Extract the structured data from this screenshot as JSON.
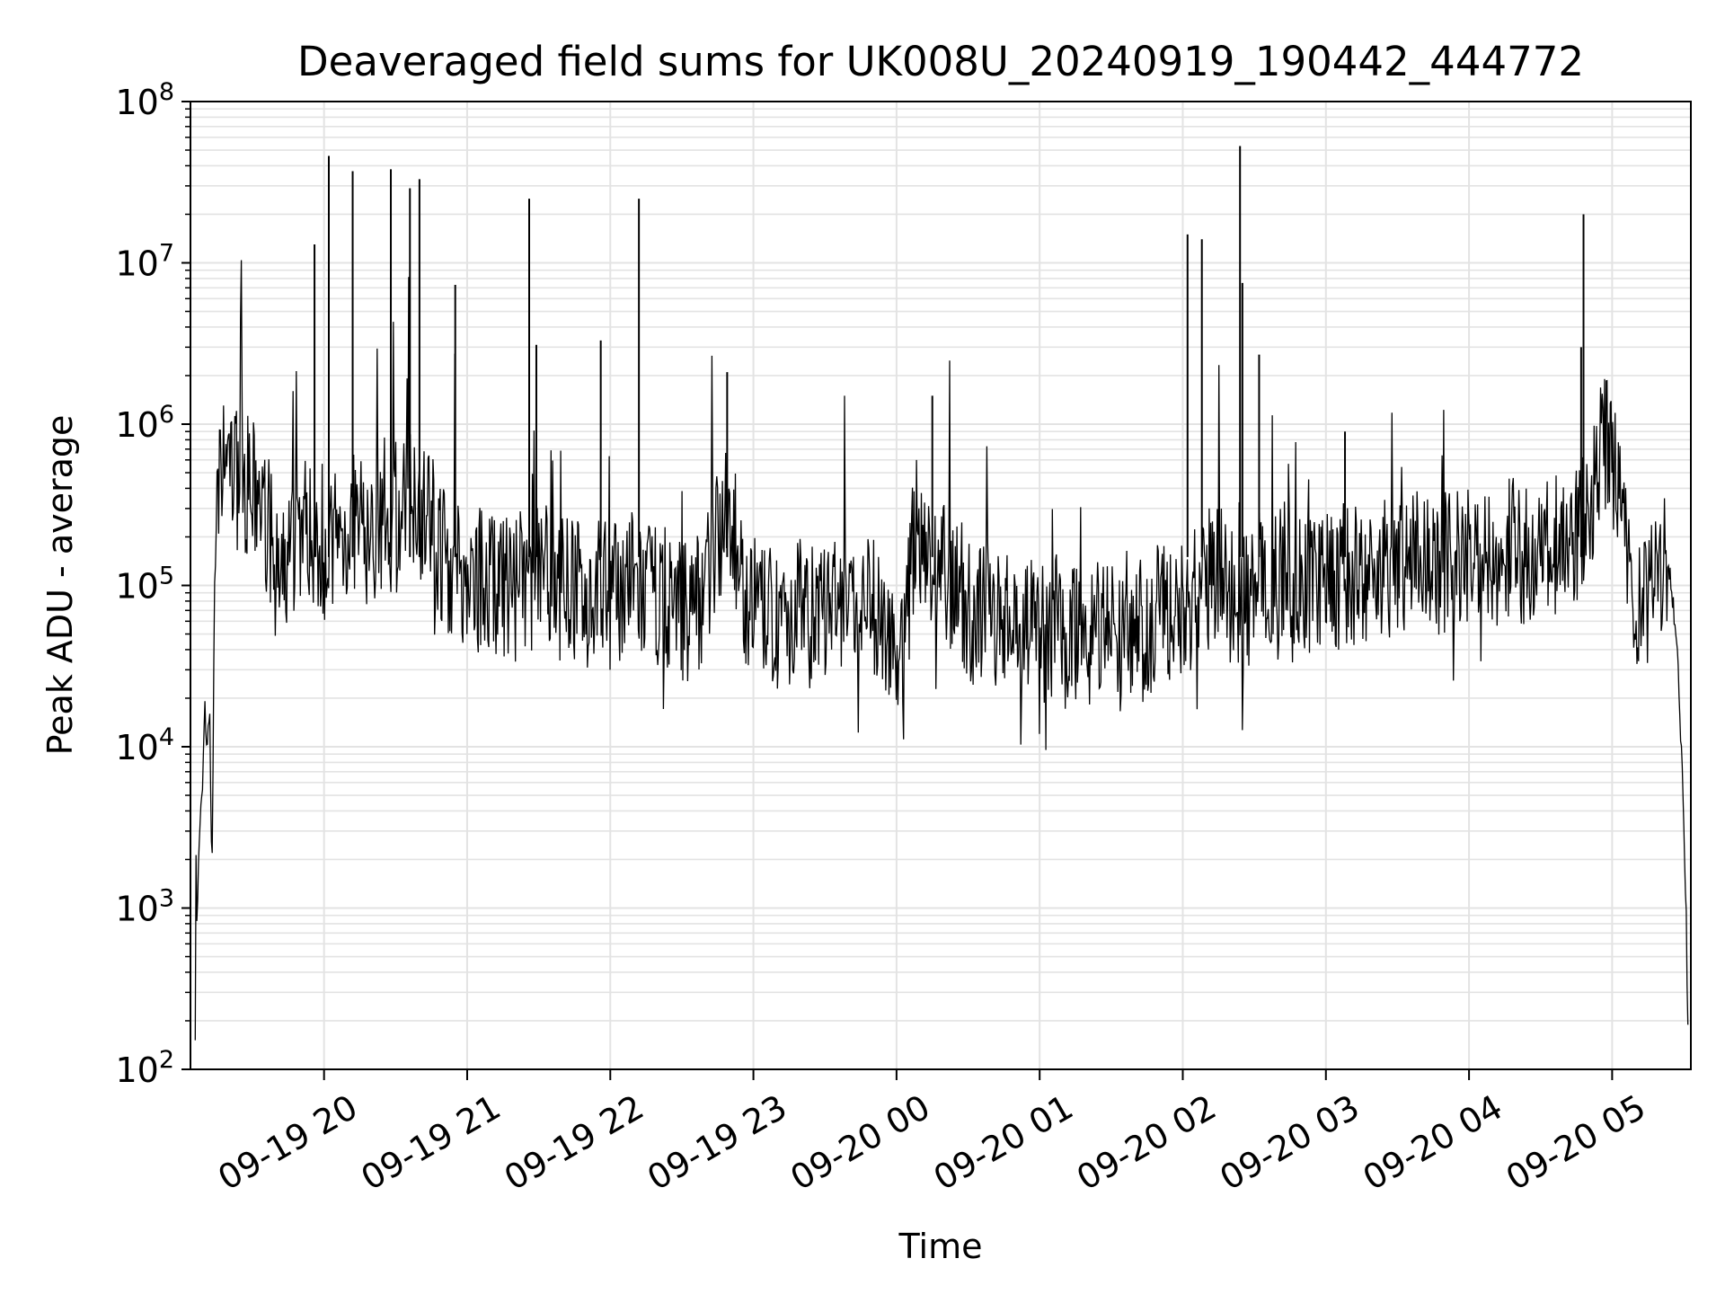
{
  "chart_data": {
    "type": "line",
    "title": "Deaveraged field sums for UK008U_20240919_190442_444772",
    "xlabel": "Time",
    "ylabel": "Peak ADU - average",
    "yscale": "log",
    "ylim": [
      100,
      100000000
    ],
    "xlim": [
      "2024-09-19 19:04",
      "2024-09-20 05:33"
    ],
    "grid": true,
    "line_color": "#000000",
    "x_ticks": [
      {
        "time": "2024-09-19 20:00",
        "label": "09-19 20"
      },
      {
        "time": "2024-09-19 21:00",
        "label": "09-19 21"
      },
      {
        "time": "2024-09-19 22:00",
        "label": "09-19 22"
      },
      {
        "time": "2024-09-19 23:00",
        "label": "09-19 23"
      },
      {
        "time": "2024-09-20 00:00",
        "label": "09-20 00"
      },
      {
        "time": "2024-09-20 01:00",
        "label": "09-20 01"
      },
      {
        "time": "2024-09-20 02:00",
        "label": "09-20 02"
      },
      {
        "time": "2024-09-20 03:00",
        "label": "09-20 03"
      },
      {
        "time": "2024-09-20 04:00",
        "label": "09-20 04"
      },
      {
        "time": "2024-09-20 05:00",
        "label": "09-20 05"
      }
    ],
    "y_ticks": [
      {
        "value": 100,
        "mantissa": "10",
        "exp": "2"
      },
      {
        "value": 1000,
        "mantissa": "10",
        "exp": "3"
      },
      {
        "value": 10000,
        "mantissa": "10",
        "exp": "4"
      },
      {
        "value": 100000,
        "mantissa": "10",
        "exp": "5"
      },
      {
        "value": 1000000,
        "mantissa": "10",
        "exp": "6"
      },
      {
        "value": 10000000,
        "mantissa": "10",
        "exp": "7"
      },
      {
        "value": 100000000,
        "mantissa": "10",
        "exp": "8"
      }
    ],
    "series": [
      {
        "x": [
          "2024-09-19 19:06",
          "2024-09-19 19:06",
          "2024-09-19 19:07",
          "2024-09-19 19:07",
          "2024-09-19 19:08",
          "2024-09-19 19:09",
          "2024-09-19 19:10",
          "2024-09-19 19:11",
          "2024-09-19 19:12",
          "2024-09-19 19:13",
          "2024-09-19 19:14",
          "2024-09-19 19:15",
          "2024-09-19 19:16",
          "2024-09-19 19:17",
          "2024-09-19 19:19",
          "2024-09-19 19:21",
          "2024-09-19 19:23",
          "2024-09-19 19:25",
          "2024-09-19 19:27",
          "2024-09-19 19:30",
          "2024-09-19 19:33",
          "2024-09-19 19:36",
          "2024-09-19 19:38",
          "2024-09-19 19:40",
          "2024-09-19 19:42",
          "2024-09-19 19:45",
          "2024-09-19 19:48",
          "2024-09-19 19:50",
          "2024-09-19 19:52",
          "2024-09-19 19:55",
          "2024-09-19 19:58",
          "2024-09-19 20:02",
          "2024-09-19 20:05",
          "2024-09-19 20:09",
          "2024-09-19 20:13",
          "2024-09-19 20:17",
          "2024-09-19 20:21",
          "2024-09-19 20:25",
          "2024-09-19 20:28",
          "2024-09-19 20:31",
          "2024-09-19 20:35",
          "2024-09-19 20:39",
          "2024-09-19 20:41",
          "2024-09-19 20:45",
          "2024-09-19 20:50",
          "2024-09-19 20:56",
          "2024-09-19 21:02",
          "2024-09-19 21:08",
          "2024-09-19 21:14",
          "2024-09-19 21:20",
          "2024-09-19 21:26",
          "2024-09-19 21:32",
          "2024-09-19 21:38",
          "2024-09-19 21:44",
          "2024-09-19 21:50",
          "2024-09-19 21:56",
          "2024-09-19 22:02",
          "2024-09-19 22:08",
          "2024-09-19 22:14",
          "2024-09-19 22:20",
          "2024-09-19 22:26",
          "2024-09-19 22:32",
          "2024-09-19 22:38",
          "2024-09-19 22:44",
          "2024-09-19 22:50",
          "2024-09-19 22:56",
          "2024-09-19 23:02",
          "2024-09-19 23:08",
          "2024-09-19 23:14",
          "2024-09-19 23:20",
          "2024-09-19 23:26",
          "2024-09-19 23:32",
          "2024-09-19 23:38",
          "2024-09-19 23:44",
          "2024-09-19 23:50",
          "2024-09-19 23:56",
          "2024-09-20 00:02",
          "2024-09-20 00:08",
          "2024-09-20 00:14",
          "2024-09-20 00:20",
          "2024-09-20 00:26",
          "2024-09-20 00:32",
          "2024-09-20 00:38",
          "2024-09-20 00:44",
          "2024-09-20 00:50",
          "2024-09-20 00:56",
          "2024-09-20 01:02",
          "2024-09-20 01:08",
          "2024-09-20 01:14",
          "2024-09-20 01:20",
          "2024-09-20 01:26",
          "2024-09-20 01:32",
          "2024-09-20 01:38",
          "2024-09-20 01:44",
          "2024-09-20 01:50",
          "2024-09-20 01:56",
          "2024-09-20 02:02",
          "2024-09-20 02:08",
          "2024-09-20 02:14",
          "2024-09-20 02:20",
          "2024-09-20 02:26",
          "2024-09-20 02:32",
          "2024-09-20 02:38",
          "2024-09-20 02:44",
          "2024-09-20 02:50",
          "2024-09-20 02:56",
          "2024-09-20 03:02",
          "2024-09-20 03:08",
          "2024-09-20 03:14",
          "2024-09-20 03:20",
          "2024-09-20 03:26",
          "2024-09-20 03:32",
          "2024-09-20 03:38",
          "2024-09-20 03:44",
          "2024-09-20 03:50",
          "2024-09-20 03:56",
          "2024-09-20 04:02",
          "2024-09-20 04:08",
          "2024-09-20 04:14",
          "2024-09-20 04:20",
          "2024-09-20 04:26",
          "2024-09-20 04:32",
          "2024-09-20 04:38",
          "2024-09-20 04:44",
          "2024-09-20 04:48",
          "2024-09-20 04:52",
          "2024-09-20 04:56",
          "2024-09-20 05:00",
          "2024-09-20 05:04",
          "2024-09-20 05:08",
          "2024-09-20 05:12",
          "2024-09-20 05:16",
          "2024-09-20 05:20",
          "2024-09-20 05:24",
          "2024-09-20 05:27",
          "2024-09-20 05:29",
          "2024-09-20 05:31",
          "2024-09-20 05:32"
        ],
        "y": [
          180,
          3800,
          450,
          1200,
          3500,
          5000,
          18000,
          9000,
          20000,
          1200,
          80000,
          200000,
          350000,
          500000,
          600000,
          550000,
          450000,
          500000,
          420000,
          380000,
          300000,
          250000,
          180000,
          120000,
          90000,
          150000,
          200000,
          220000,
          250000,
          200000,
          180000,
          160000,
          150000,
          220000,
          250000,
          200000,
          180000,
          300000,
          250000,
          220000,
          350000,
          400000,
          280000,
          250000,
          150000,
          120000,
          100000,
          120000,
          90000,
          110000,
          100000,
          150000,
          90000,
          100000,
          80000,
          100000,
          90000,
          110000,
          85000,
          90000,
          80000,
          70000,
          85000,
          180000,
          300000,
          90000,
          70000,
          60000,
          65000,
          70000,
          60000,
          75000,
          70000,
          65000,
          70000,
          60000,
          30000,
          250000,
          150000,
          120000,
          100000,
          60000,
          70000,
          65000,
          60000,
          55000,
          50000,
          60000,
          55000,
          50000,
          60000,
          55000,
          60000,
          50000,
          70000,
          60000,
          80000,
          100000,
          120000,
          90000,
          80000,
          100000,
          110000,
          120000,
          100000,
          110000,
          100000,
          120000,
          110000,
          130000,
          120000,
          140000,
          150000,
          130000,
          140000,
          150000,
          160000,
          150000,
          160000,
          170000,
          150000,
          160000,
          180000,
          200000,
          250000,
          400000,
          800000,
          600000,
          300000,
          100000,
          60000,
          80000,
          150000,
          120000,
          50000,
          10000,
          1000,
          100
        ],
        "spikes": [
          {
            "x": "2024-09-19 19:56",
            "y": 13000000
          },
          {
            "x": "2024-09-19 20:02",
            "y": 46000000
          },
          {
            "x": "2024-09-19 20:12",
            "y": 37000000
          },
          {
            "x": "2024-09-19 20:28",
            "y": 38000000
          },
          {
            "x": "2024-09-19 20:36",
            "y": 29000000
          },
          {
            "x": "2024-09-19 20:40",
            "y": 33000000
          },
          {
            "x": "2024-09-19 20:55",
            "y": 7300000
          },
          {
            "x": "2024-09-19 21:26",
            "y": 25000000
          },
          {
            "x": "2024-09-19 21:29",
            "y": 3100000
          },
          {
            "x": "2024-09-19 21:56",
            "y": 3300000
          },
          {
            "x": "2024-09-19 22:12",
            "y": 25000000
          },
          {
            "x": "2024-09-19 22:49",
            "y": 2100000
          },
          {
            "x": "2024-09-20 00:15",
            "y": 1500000
          },
          {
            "x": "2024-09-20 02:02",
            "y": 15000000
          },
          {
            "x": "2024-09-20 02:08",
            "y": 14000000
          },
          {
            "x": "2024-09-20 02:24",
            "y": 53000000
          },
          {
            "x": "2024-09-20 02:25",
            "y": 7500000
          },
          {
            "x": "2024-09-20 02:32",
            "y": 2700000
          },
          {
            "x": "2024-09-20 03:08",
            "y": 900000
          },
          {
            "x": "2024-09-20 04:48",
            "y": 20000000
          },
          {
            "x": "2024-09-20 04:47",
            "y": 3000000
          }
        ]
      }
    ]
  }
}
